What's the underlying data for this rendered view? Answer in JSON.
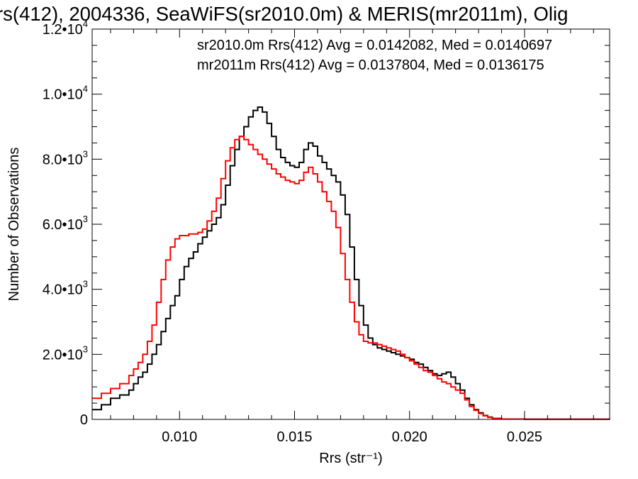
{
  "chart_data": {
    "type": "line",
    "title": "rs(412), 2004336, SeaWiFS(sr2010.0m) & MERIS(mr2011m), Olig",
    "xlabel": "Rrs (str⁻¹)",
    "ylabel": "Number of Observations",
    "xlim": [
      0.0062,
      0.0287
    ],
    "ylim": [
      0,
      12000
    ],
    "x_ticks": [
      0.01,
      0.015,
      0.02,
      0.025
    ],
    "x_tick_labels": [
      "0.010",
      "0.015",
      "0.020",
      "0.025"
    ],
    "y_ticks": [
      0,
      2000,
      4000,
      6000,
      8000,
      10000,
      12000
    ],
    "y_tick_labels": [
      {
        "mant": "0",
        "exp": ""
      },
      {
        "mant": "2.0•10",
        "exp": "3"
      },
      {
        "mant": "4.0•10",
        "exp": "3"
      },
      {
        "mant": "6.0•10",
        "exp": "3"
      },
      {
        "mant": "8.0•10",
        "exp": "3"
      },
      {
        "mant": "1.0•10",
        "exp": "4"
      },
      {
        "mant": "1.2•10",
        "exp": "4"
      }
    ],
    "grid": false,
    "legend_position": "top-right",
    "series": [
      {
        "name": "sr2010.0m Rrs(412) Avg = 0.0142082, Med = 0.0140697",
        "color": "#000000",
        "points": [
          [
            0.0062,
            300
          ],
          [
            0.0066,
            450
          ],
          [
            0.007,
            650
          ],
          [
            0.0074,
            750
          ],
          [
            0.0078,
            900
          ],
          [
            0.008,
            1100
          ],
          [
            0.0082,
            1300
          ],
          [
            0.0084,
            1450
          ],
          [
            0.0086,
            1700
          ],
          [
            0.0088,
            2000
          ],
          [
            0.009,
            2300
          ],
          [
            0.0092,
            2700
          ],
          [
            0.0094,
            3100
          ],
          [
            0.0096,
            3500
          ],
          [
            0.0098,
            3800
          ],
          [
            0.01,
            4300
          ],
          [
            0.0102,
            4700
          ],
          [
            0.0104,
            4950
          ],
          [
            0.0106,
            5150
          ],
          [
            0.0108,
            5400
          ],
          [
            0.011,
            5600
          ],
          [
            0.0112,
            5800
          ],
          [
            0.0114,
            6000
          ],
          [
            0.0116,
            6200
          ],
          [
            0.0118,
            6600
          ],
          [
            0.012,
            7200
          ],
          [
            0.0122,
            7800
          ],
          [
            0.0124,
            8300
          ],
          [
            0.0126,
            8700
          ],
          [
            0.0128,
            9000
          ],
          [
            0.013,
            9300
          ],
          [
            0.0132,
            9500
          ],
          [
            0.0134,
            9600
          ],
          [
            0.0136,
            9450
          ],
          [
            0.0138,
            9100
          ],
          [
            0.014,
            8700
          ],
          [
            0.0142,
            8300
          ],
          [
            0.0144,
            8050
          ],
          [
            0.0146,
            7900
          ],
          [
            0.0148,
            7800
          ],
          [
            0.015,
            7750
          ],
          [
            0.0152,
            7900
          ],
          [
            0.0154,
            8300
          ],
          [
            0.0156,
            8500
          ],
          [
            0.0158,
            8400
          ],
          [
            0.016,
            8100
          ],
          [
            0.0162,
            7900
          ],
          [
            0.0164,
            7700
          ],
          [
            0.0166,
            7500
          ],
          [
            0.0168,
            7300
          ],
          [
            0.017,
            6900
          ],
          [
            0.0172,
            6300
          ],
          [
            0.0174,
            5300
          ],
          [
            0.0176,
            4300
          ],
          [
            0.0178,
            3500
          ],
          [
            0.018,
            2900
          ],
          [
            0.0182,
            2500
          ],
          [
            0.0184,
            2300
          ],
          [
            0.0186,
            2200
          ],
          [
            0.0188,
            2150
          ],
          [
            0.019,
            2100
          ],
          [
            0.0192,
            2050
          ],
          [
            0.0194,
            2000
          ],
          [
            0.0196,
            1950
          ],
          [
            0.0198,
            1900
          ],
          [
            0.02,
            1850
          ],
          [
            0.0202,
            1750
          ],
          [
            0.0204,
            1700
          ],
          [
            0.0206,
            1600
          ],
          [
            0.0208,
            1500
          ],
          [
            0.021,
            1400
          ],
          [
            0.0212,
            1350
          ],
          [
            0.0214,
            1400
          ],
          [
            0.0216,
            1450
          ],
          [
            0.0218,
            1300
          ],
          [
            0.022,
            1100
          ],
          [
            0.0222,
            900
          ],
          [
            0.0224,
            650
          ],
          [
            0.0226,
            450
          ],
          [
            0.0228,
            300
          ],
          [
            0.023,
            200
          ],
          [
            0.0232,
            120
          ],
          [
            0.0234,
            70
          ],
          [
            0.0236,
            30
          ],
          [
            0.024,
            10
          ],
          [
            0.025,
            5
          ],
          [
            0.0287,
            0
          ]
        ]
      },
      {
        "name": "mr2011m Rrs(412) Avg = 0.0137804, Med = 0.0136175",
        "color": "#ff0000",
        "points": [
          [
            0.0062,
            650
          ],
          [
            0.0066,
            800
          ],
          [
            0.007,
            950
          ],
          [
            0.0074,
            1100
          ],
          [
            0.0078,
            1350
          ],
          [
            0.008,
            1550
          ],
          [
            0.0082,
            1750
          ],
          [
            0.0084,
            2000
          ],
          [
            0.0086,
            2400
          ],
          [
            0.0088,
            2900
          ],
          [
            0.009,
            3600
          ],
          [
            0.0092,
            4300
          ],
          [
            0.0094,
            4900
          ],
          [
            0.0096,
            5300
          ],
          [
            0.0098,
            5550
          ],
          [
            0.01,
            5650
          ],
          [
            0.0102,
            5650
          ],
          [
            0.0104,
            5700
          ],
          [
            0.0106,
            5700
          ],
          [
            0.0108,
            5750
          ],
          [
            0.011,
            5850
          ],
          [
            0.0112,
            6100
          ],
          [
            0.0114,
            6400
          ],
          [
            0.0116,
            6800
          ],
          [
            0.0118,
            7400
          ],
          [
            0.012,
            7950
          ],
          [
            0.0122,
            8350
          ],
          [
            0.0124,
            8600
          ],
          [
            0.0126,
            8700
          ],
          [
            0.0128,
            8600
          ],
          [
            0.013,
            8450
          ],
          [
            0.0132,
            8300
          ],
          [
            0.0134,
            8150
          ],
          [
            0.0136,
            8000
          ],
          [
            0.0138,
            7850
          ],
          [
            0.014,
            7700
          ],
          [
            0.0142,
            7550
          ],
          [
            0.0144,
            7450
          ],
          [
            0.0146,
            7350
          ],
          [
            0.0148,
            7300
          ],
          [
            0.015,
            7250
          ],
          [
            0.0152,
            7350
          ],
          [
            0.0154,
            7600
          ],
          [
            0.0156,
            7750
          ],
          [
            0.0158,
            7550
          ],
          [
            0.016,
            7300
          ],
          [
            0.0162,
            7000
          ],
          [
            0.0164,
            6700
          ],
          [
            0.0166,
            6400
          ],
          [
            0.0168,
            5900
          ],
          [
            0.017,
            5100
          ],
          [
            0.0172,
            4300
          ],
          [
            0.0174,
            3600
          ],
          [
            0.0176,
            3000
          ],
          [
            0.0178,
            2600
          ],
          [
            0.018,
            2400
          ],
          [
            0.0182,
            2350
          ],
          [
            0.0184,
            2350
          ],
          [
            0.0186,
            2300
          ],
          [
            0.0188,
            2250
          ],
          [
            0.019,
            2200
          ],
          [
            0.0192,
            2150
          ],
          [
            0.0194,
            2100
          ],
          [
            0.0196,
            2000
          ],
          [
            0.0198,
            1900
          ],
          [
            0.02,
            1800
          ],
          [
            0.0202,
            1700
          ],
          [
            0.0204,
            1600
          ],
          [
            0.0206,
            1500
          ],
          [
            0.0208,
            1450
          ],
          [
            0.021,
            1350
          ],
          [
            0.0212,
            1250
          ],
          [
            0.0214,
            1150
          ],
          [
            0.0216,
            1100
          ],
          [
            0.0218,
            1000
          ],
          [
            0.022,
            900
          ],
          [
            0.0222,
            800
          ],
          [
            0.0224,
            600
          ],
          [
            0.0226,
            400
          ],
          [
            0.0228,
            280
          ],
          [
            0.023,
            180
          ],
          [
            0.0232,
            110
          ],
          [
            0.0234,
            60
          ],
          [
            0.0236,
            30
          ],
          [
            0.024,
            10
          ],
          [
            0.025,
            5
          ],
          [
            0.0287,
            0
          ]
        ]
      }
    ]
  }
}
